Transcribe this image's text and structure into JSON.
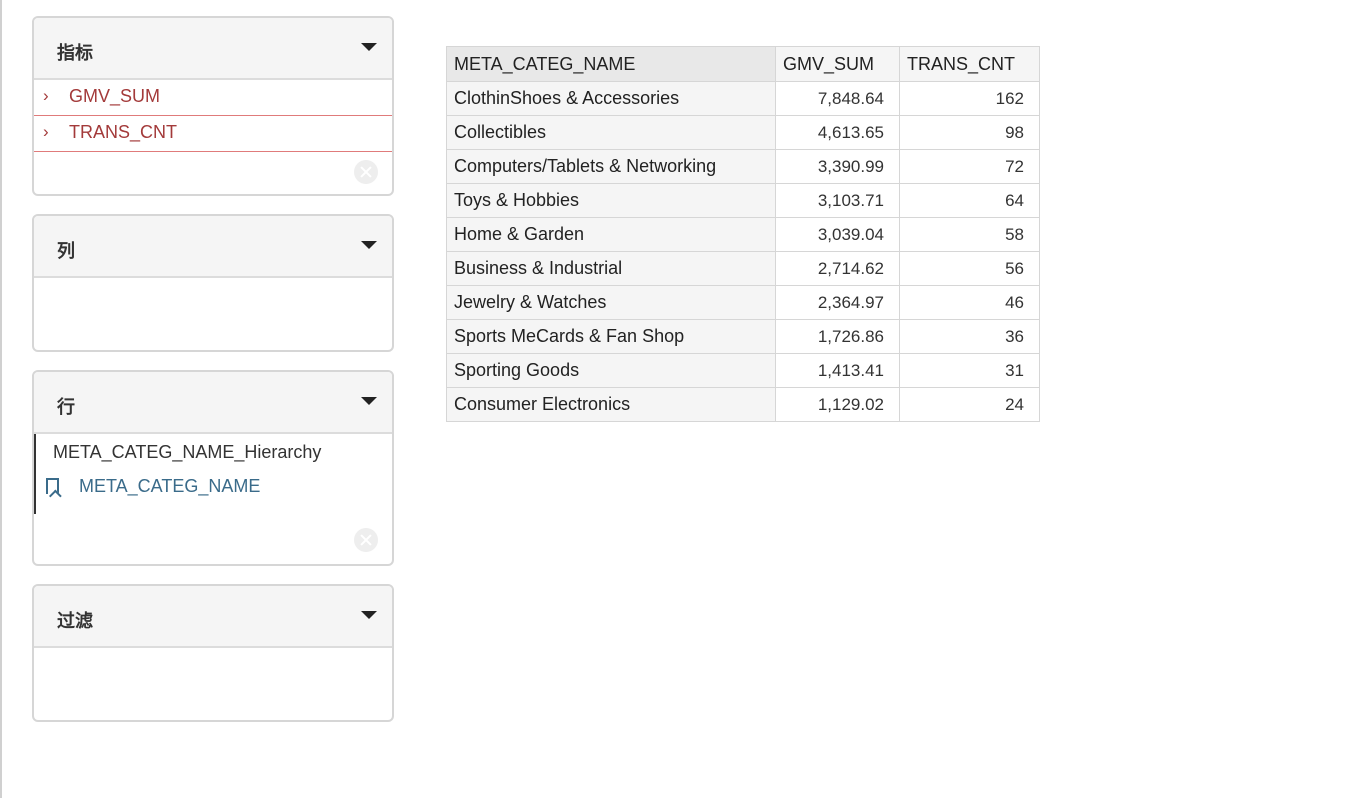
{
  "panels": {
    "measures": {
      "title": "指标",
      "items": [
        {
          "label": "GMV_SUM"
        },
        {
          "label": "TRANS_CNT"
        }
      ]
    },
    "columns": {
      "title": "列"
    },
    "rows": {
      "title": "行",
      "hierarchy": "META_CATEG_NAME_Hierarchy",
      "level": "META_CATEG_NAME"
    },
    "filter": {
      "title": "过滤"
    }
  },
  "table": {
    "headers": [
      "META_CATEG_NAME",
      "GMV_SUM",
      "TRANS_CNT"
    ],
    "rows": [
      [
        "ClothinShoes & Accessories",
        "7,848.64",
        "162"
      ],
      [
        "Collectibles",
        "4,613.65",
        "98"
      ],
      [
        "Computers/Tablets & Networking",
        "3,390.99",
        "72"
      ],
      [
        "Toys & Hobbies",
        "3,103.71",
        "64"
      ],
      [
        "Home & Garden",
        "3,039.04",
        "58"
      ],
      [
        "Business & Industrial",
        "2,714.62",
        "56"
      ],
      [
        "Jewelry & Watches",
        "2,364.97",
        "46"
      ],
      [
        "Sports MeCards & Fan Shop",
        "1,726.86",
        "36"
      ],
      [
        "Sporting Goods",
        "1,413.41",
        "31"
      ],
      [
        "Consumer Electronics",
        "1,129.02",
        "24"
      ]
    ]
  },
  "colors": {
    "measure_text": "#a33a3a",
    "level_text": "#3a6b8a",
    "panel_header_bg": "#f5f5f5"
  }
}
